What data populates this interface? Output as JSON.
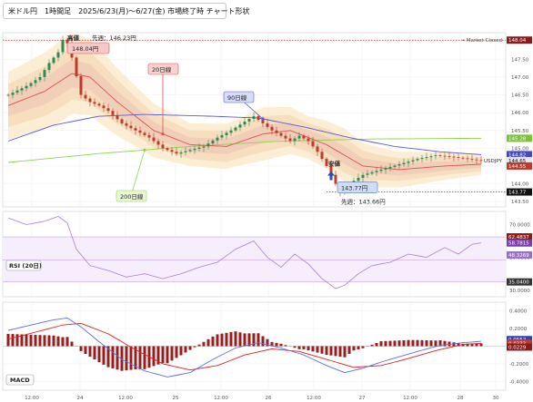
{
  "title": "米ドル円　1時間足　2025/6/23(月)〜6/27(金) 市場終了時 チャート形状",
  "market_status": "• Market Closed",
  "symbol": "USDJPY",
  "colors": {
    "candle_up": "#2e8b57",
    "candle_down": "#c0392b",
    "ma20": "#d9534f",
    "ma90": "#5b5bd6",
    "ma200": "#8fd14f",
    "rsi": "#b07cd8",
    "macd": "#5a6fe0",
    "signal": "#e02020",
    "high_line": "#b22222",
    "low_line": "#333333"
  },
  "annotations": {
    "ma20_label": "20日線",
    "ma90_label": "90日線",
    "ma200_label": "200日線",
    "high_word": "高値",
    "high_previous": "先週：146.23円",
    "high_value": "148.04円",
    "low_word": "安値",
    "low_value": "143.77円",
    "low_previous": "先週：143.66円"
  },
  "rsi_label": "RSI (20日)",
  "macd_label": "MACD",
  "tags": {
    "high": "148.04",
    "ma200": "145.28",
    "ma90": "144.82",
    "current": "144.65",
    "ma20": "144.55",
    "low": "143.77",
    "rsi_upper": "62.4837",
    "rsi_value": "58.7815",
    "rsi_mid": "48.3269",
    "rsi_lower": "35.0400",
    "macd_value": "0.0552",
    "macd_signal": "0.0333",
    "macd_hist": "0.0229"
  },
  "chart_data": [
    {
      "type": "candlestick",
      "title": "米ドル円　1時間足　2025/6/23(月)〜6/27(金) 市場終了時 チャート形状",
      "x_ticks": [
        "12:00",
        "24",
        "12:00",
        "25",
        "12:00",
        "26",
        "12:00",
        "27",
        "12:00",
        "28",
        "30"
      ],
      "y_ticks": [
        "143.50",
        "144.00",
        "144.50",
        "145.00",
        "145.50",
        "146.00",
        "146.50",
        "147.00",
        "147.50",
        "148.00"
      ],
      "ylim": [
        143.35,
        148.25
      ],
      "price_path": [
        {
          "x": 0,
          "y": 146.5
        },
        {
          "x": 4,
          "y": 146.75
        },
        {
          "x": 7,
          "y": 147.0
        },
        {
          "x": 9,
          "y": 147.4
        },
        {
          "x": 11,
          "y": 147.7
        },
        {
          "x": 12,
          "y": 148.04
        },
        {
          "x": 13,
          "y": 147.95
        },
        {
          "x": 14,
          "y": 147.55
        },
        {
          "x": 16,
          "y": 146.5
        },
        {
          "x": 18,
          "y": 146.3
        },
        {
          "x": 20,
          "y": 146.2
        },
        {
          "x": 22,
          "y": 146.05
        },
        {
          "x": 25,
          "y": 145.7
        },
        {
          "x": 28,
          "y": 145.5
        },
        {
          "x": 31,
          "y": 145.3
        },
        {
          "x": 34,
          "y": 145.0
        },
        {
          "x": 37,
          "y": 144.85
        },
        {
          "x": 40,
          "y": 144.95
        },
        {
          "x": 43,
          "y": 145.05
        },
        {
          "x": 46,
          "y": 145.3
        },
        {
          "x": 49,
          "y": 145.5
        },
        {
          "x": 52,
          "y": 145.75
        },
        {
          "x": 54,
          "y": 145.9
        },
        {
          "x": 56,
          "y": 145.7
        },
        {
          "x": 58,
          "y": 145.5
        },
        {
          "x": 60,
          "y": 145.35
        },
        {
          "x": 62,
          "y": 145.2
        },
        {
          "x": 64,
          "y": 145.35
        },
        {
          "x": 66,
          "y": 145.2
        },
        {
          "x": 68,
          "y": 144.9
        },
        {
          "x": 70,
          "y": 144.5
        },
        {
          "x": 72,
          "y": 144.0
        },
        {
          "x": 73,
          "y": 143.77
        },
        {
          "x": 75,
          "y": 144.0
        },
        {
          "x": 78,
          "y": 144.25
        },
        {
          "x": 82,
          "y": 144.4
        },
        {
          "x": 86,
          "y": 144.55
        },
        {
          "x": 90,
          "y": 144.7
        },
        {
          "x": 94,
          "y": 144.8
        },
        {
          "x": 98,
          "y": 144.75
        },
        {
          "x": 101,
          "y": 144.7
        },
        {
          "x": 104,
          "y": 144.65
        }
      ],
      "ma20": [
        {
          "x": 0,
          "y": 146.2
        },
        {
          "x": 8,
          "y": 146.6
        },
        {
          "x": 14,
          "y": 147.1
        },
        {
          "x": 18,
          "y": 147.0
        },
        {
          "x": 24,
          "y": 146.3
        },
        {
          "x": 32,
          "y": 145.5
        },
        {
          "x": 40,
          "y": 145.1
        },
        {
          "x": 48,
          "y": 145.05
        },
        {
          "x": 56,
          "y": 145.4
        },
        {
          "x": 62,
          "y": 145.5
        },
        {
          "x": 70,
          "y": 145.1
        },
        {
          "x": 78,
          "y": 144.5
        },
        {
          "x": 86,
          "y": 144.4
        },
        {
          "x": 96,
          "y": 144.5
        },
        {
          "x": 104,
          "y": 144.55
        }
      ],
      "ma90": [
        {
          "x": 0,
          "y": 145.2
        },
        {
          "x": 10,
          "y": 145.65
        },
        {
          "x": 20,
          "y": 145.9
        },
        {
          "x": 30,
          "y": 145.95
        },
        {
          "x": 45,
          "y": 145.9
        },
        {
          "x": 55,
          "y": 145.85
        },
        {
          "x": 65,
          "y": 145.6
        },
        {
          "x": 75,
          "y": 145.3
        },
        {
          "x": 85,
          "y": 145.05
        },
        {
          "x": 95,
          "y": 144.9
        },
        {
          "x": 104,
          "y": 144.82
        }
      ],
      "ma200": [
        {
          "x": 0,
          "y": 144.6
        },
        {
          "x": 20,
          "y": 144.85
        },
        {
          "x": 40,
          "y": 145.05
        },
        {
          "x": 60,
          "y": 145.2
        },
        {
          "x": 80,
          "y": 145.26
        },
        {
          "x": 104,
          "y": 145.28
        }
      ],
      "current_price": 144.65,
      "high": 148.04,
      "low": 143.77
    },
    {
      "type": "line",
      "title": "RSI (20日)",
      "y_ticks": [
        "30.0000",
        "50.0000",
        "70.0000"
      ],
      "ylim": [
        26,
        78
      ],
      "levels": [
        62.4837,
        48.3269,
        35.04
      ],
      "values": [
        {
          "x": 0,
          "y": 74
        },
        {
          "x": 4,
          "y": 70
        },
        {
          "x": 8,
          "y": 72
        },
        {
          "x": 11,
          "y": 75
        },
        {
          "x": 13,
          "y": 71
        },
        {
          "x": 15,
          "y": 55
        },
        {
          "x": 18,
          "y": 45
        },
        {
          "x": 22,
          "y": 42
        },
        {
          "x": 26,
          "y": 38
        },
        {
          "x": 30,
          "y": 40
        },
        {
          "x": 34,
          "y": 37
        },
        {
          "x": 38,
          "y": 40
        },
        {
          "x": 42,
          "y": 44
        },
        {
          "x": 46,
          "y": 47
        },
        {
          "x": 50,
          "y": 55
        },
        {
          "x": 54,
          "y": 60
        },
        {
          "x": 57,
          "y": 50
        },
        {
          "x": 60,
          "y": 44
        },
        {
          "x": 63,
          "y": 52
        },
        {
          "x": 66,
          "y": 46
        },
        {
          "x": 69,
          "y": 37
        },
        {
          "x": 72,
          "y": 31
        },
        {
          "x": 74,
          "y": 33
        },
        {
          "x": 77,
          "y": 40
        },
        {
          "x": 80,
          "y": 45
        },
        {
          "x": 84,
          "y": 47
        },
        {
          "x": 88,
          "y": 52
        },
        {
          "x": 92,
          "y": 50
        },
        {
          "x": 96,
          "y": 56
        },
        {
          "x": 99,
          "y": 52
        },
        {
          "x": 102,
          "y": 58
        },
        {
          "x": 104,
          "y": 58.78
        }
      ]
    },
    {
      "type": "line",
      "title": "MACD",
      "y_ticks": [
        "-0.4000",
        "-0.2000",
        "0.0000",
        "0.2000",
        "0.4000"
      ],
      "ylim": [
        -0.5,
        0.5
      ],
      "macd": [
        {
          "x": 0,
          "y": 0.18
        },
        {
          "x": 5,
          "y": 0.24
        },
        {
          "x": 10,
          "y": 0.3
        },
        {
          "x": 13,
          "y": 0.32
        },
        {
          "x": 16,
          "y": 0.22
        },
        {
          "x": 20,
          "y": 0.05
        },
        {
          "x": 25,
          "y": -0.15
        },
        {
          "x": 30,
          "y": -0.28
        },
        {
          "x": 35,
          "y": -0.35
        },
        {
          "x": 40,
          "y": -0.3
        },
        {
          "x": 45,
          "y": -0.15
        },
        {
          "x": 50,
          "y": -0.02
        },
        {
          "x": 55,
          "y": 0.04
        },
        {
          "x": 60,
          "y": -0.02
        },
        {
          "x": 65,
          "y": -0.1
        },
        {
          "x": 70,
          "y": -0.22
        },
        {
          "x": 74,
          "y": -0.3
        },
        {
          "x": 78,
          "y": -0.25
        },
        {
          "x": 82,
          "y": -0.18
        },
        {
          "x": 86,
          "y": -0.12
        },
        {
          "x": 90,
          "y": -0.06
        },
        {
          "x": 95,
          "y": 0.01
        },
        {
          "x": 100,
          "y": 0.04
        },
        {
          "x": 104,
          "y": 0.0552
        }
      ],
      "signal": [
        {
          "x": 0,
          "y": 0.08
        },
        {
          "x": 6,
          "y": 0.16
        },
        {
          "x": 12,
          "y": 0.24
        },
        {
          "x": 16,
          "y": 0.26
        },
        {
          "x": 22,
          "y": 0.14
        },
        {
          "x": 28,
          "y": -0.04
        },
        {
          "x": 34,
          "y": -0.2
        },
        {
          "x": 40,
          "y": -0.27
        },
        {
          "x": 46,
          "y": -0.22
        },
        {
          "x": 52,
          "y": -0.1
        },
        {
          "x": 58,
          "y": -0.03
        },
        {
          "x": 64,
          "y": -0.06
        },
        {
          "x": 70,
          "y": -0.15
        },
        {
          "x": 76,
          "y": -0.24
        },
        {
          "x": 82,
          "y": -0.22
        },
        {
          "x": 88,
          "y": -0.14
        },
        {
          "x": 94,
          "y": -0.05
        },
        {
          "x": 100,
          "y": 0.02
        },
        {
          "x": 104,
          "y": 0.0333
        }
      ]
    }
  ]
}
